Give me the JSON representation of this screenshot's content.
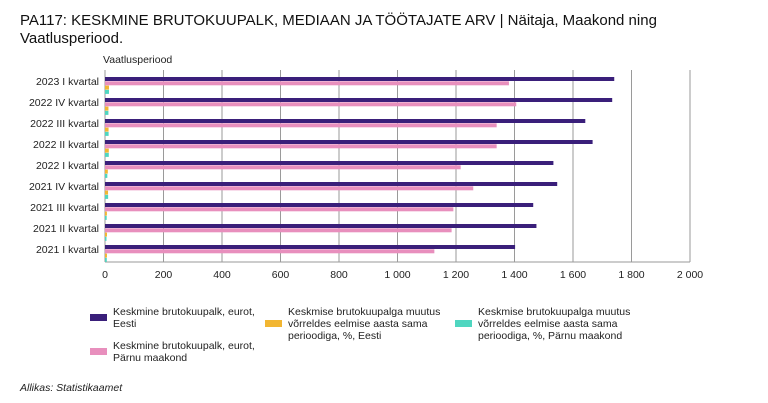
{
  "title": "PA117: KESKMINE BRUTOKUUPALK, MEDIAAN JA TÖÖTAJATE ARV | Näitaja, Maakond ning Vaatlusperiood.",
  "source": "Allikas: Statistikaamet",
  "chart_data": {
    "type": "bar",
    "orientation": "horizontal",
    "ylabel": "Vaatlusperiood",
    "xlim": [
      0,
      2000
    ],
    "xticks": [
      0,
      200,
      400,
      600,
      800,
      1000,
      1200,
      1400,
      1600,
      1800,
      2000
    ],
    "xtick_labels": [
      "0",
      "200",
      "400",
      "600",
      "800",
      "1 000",
      "1 200",
      "1 400",
      "1 600",
      "1 800",
      "2 000"
    ],
    "grid": true,
    "legend_position": "bottom",
    "categories": [
      "2023 I kvartal",
      "2022 IV kvartal",
      "2022 III kvartal",
      "2022 II kvartal",
      "2022 I kvartal",
      "2021 IV kvartal",
      "2021 III kvartal",
      "2021 II kvartal",
      "2021 I kvartal"
    ],
    "series": [
      {
        "name": "Keskmine brutokuupalk, eurot, Eesti",
        "color": "#3a1f7a",
        "values": [
          1741,
          1734,
          1642,
          1667,
          1533,
          1546,
          1464,
          1475,
          1402
        ]
      },
      {
        "name": "Keskmine brutokuupalk, eurot, Pärnu maakond",
        "color": "#e88fbd",
        "values": [
          1381,
          1406,
          1339,
          1339,
          1216,
          1259,
          1191,
          1185,
          1126
        ]
      },
      {
        "name": "Keskmise brutokuupalga muutus võrreldes eelmise aasta sama perioodiga, %, Eesti",
        "color": "#f2b632",
        "values": [
          13.6,
          11.8,
          12.2,
          13.0,
          9.6,
          10.4,
          6.5,
          6.8,
          6.7
        ]
      },
      {
        "name": "Keskmise brutokuupalga muutus võrreldes eelmise aasta sama perioodiga, %, Pärnu maakond",
        "color": "#4fd6c0",
        "values": [
          13.6,
          11.7,
          12.4,
          13.0,
          8.0,
          10.7,
          5.8,
          5.1,
          6.1
        ]
      }
    ]
  }
}
